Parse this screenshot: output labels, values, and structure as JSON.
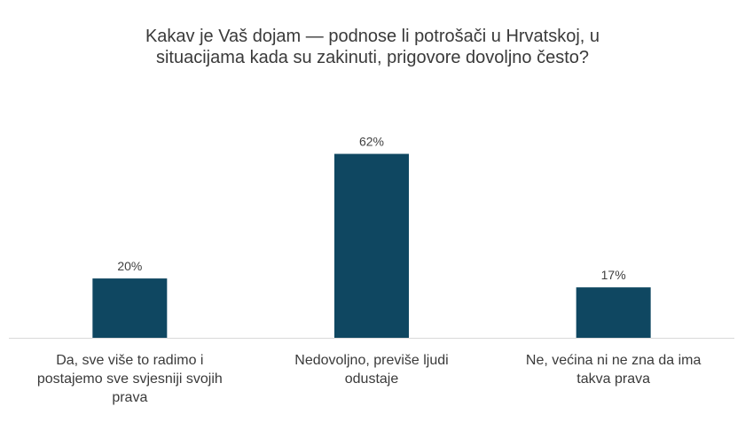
{
  "title_lines": [
    "Kakav je Vaš dojam — podnose li potrošači u Hrvatskoj, u",
    "situacijama kada su zakinuti, prigovore dovoljno često?"
  ],
  "colors": {
    "bar": "#0f4761",
    "axis": "#d9d9d9"
  },
  "chart_data": {
    "type": "bar",
    "title": "Kakav je Vaš dojam — podnose li potrošači u Hrvatskoj, u situacijama kada su zakinuti, prigovore dovoljno često?",
    "categories": [
      "Da, sve više to radimo i postajemo sve svjesniji svojih prava",
      "Nedovoljno, previše ljudi odustaje",
      "Ne, većina ni ne zna da ima takva prava"
    ],
    "category_lines": [
      [
        "Da, sve više to radimo i",
        "postajemo sve svjesniji svojih",
        "prava"
      ],
      [
        "Nedovoljno, previše ljudi",
        "odustaje"
      ],
      [
        "Ne, većina ni ne zna da ima",
        "takva prava"
      ]
    ],
    "values": [
      20,
      62,
      17
    ],
    "value_labels": [
      "20%",
      "62%",
      "17%"
    ],
    "unit": "%",
    "ylim": [
      0,
      70
    ],
    "grid": false,
    "legend": "none",
    "xlabel": "",
    "ylabel": ""
  }
}
